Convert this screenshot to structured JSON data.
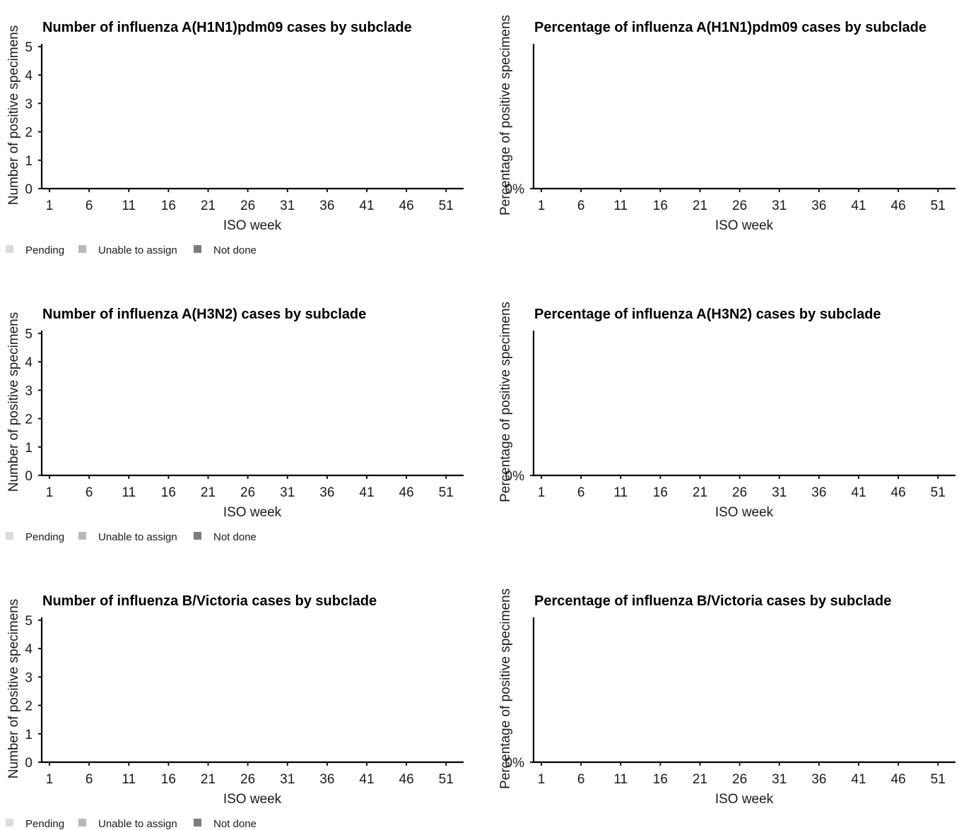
{
  "chart_data": [
    {
      "type": "bar",
      "title": "Number of influenza A(H1N1)pdm09 cases by subclade",
      "xlabel": "ISO week",
      "ylabel": "Number of positive specimens",
      "x_ticks": [
        "1",
        "6",
        "11",
        "16",
        "21",
        "26",
        "31",
        "36",
        "41",
        "46",
        "51"
      ],
      "y_ticks": [
        "0",
        "1",
        "2",
        "3",
        "4",
        "5"
      ],
      "ylim": [
        0,
        5
      ],
      "xlim": [
        1,
        53
      ],
      "series": [],
      "legend": {
        "placement": "bottom-left",
        "items": [
          {
            "label": "Pending",
            "color": "#dcdcdc"
          },
          {
            "label": "Unable to assign",
            "color": "#b8b8b8"
          },
          {
            "label": "Not done",
            "color": "#7c7c7c"
          }
        ]
      }
    },
    {
      "type": "bar",
      "title": "Percentage of influenza A(H1N1)pdm09 cases by subclade",
      "xlabel": "ISO week",
      "ylabel": "Percentage of positive specimens",
      "x_ticks": [
        "1",
        "6",
        "11",
        "16",
        "21",
        "26",
        "31",
        "36",
        "41",
        "46",
        "51"
      ],
      "y_ticks": [
        "0%"
      ],
      "xlim": [
        1,
        53
      ],
      "series": []
    },
    {
      "type": "bar",
      "title": "Number of influenza A(H3N2) cases by subclade",
      "xlabel": "ISO week",
      "ylabel": "Number of positive specimens",
      "x_ticks": [
        "1",
        "6",
        "11",
        "16",
        "21",
        "26",
        "31",
        "36",
        "41",
        "46",
        "51"
      ],
      "y_ticks": [
        "0",
        "1",
        "2",
        "3",
        "4",
        "5"
      ],
      "ylim": [
        0,
        5
      ],
      "xlim": [
        1,
        53
      ],
      "series": [],
      "legend": {
        "placement": "bottom-left",
        "items": [
          {
            "label": "Pending",
            "color": "#dcdcdc"
          },
          {
            "label": "Unable to assign",
            "color": "#b8b8b8"
          },
          {
            "label": "Not done",
            "color": "#7c7c7c"
          }
        ]
      }
    },
    {
      "type": "bar",
      "title": "Percentage of influenza A(H3N2) cases by subclade",
      "xlabel": "ISO week",
      "ylabel": "Percentage of positive specimens",
      "x_ticks": [
        "1",
        "6",
        "11",
        "16",
        "21",
        "26",
        "31",
        "36",
        "41",
        "46",
        "51"
      ],
      "y_ticks": [
        "0%"
      ],
      "xlim": [
        1,
        53
      ],
      "series": []
    },
    {
      "type": "bar",
      "title": "Number of influenza B/Victoria cases by subclade",
      "xlabel": "ISO week",
      "ylabel": "Number of positive specimens",
      "x_ticks": [
        "1",
        "6",
        "11",
        "16",
        "21",
        "26",
        "31",
        "36",
        "41",
        "46",
        "51"
      ],
      "y_ticks": [
        "0",
        "1",
        "2",
        "3",
        "4",
        "5"
      ],
      "ylim": [
        0,
        5
      ],
      "xlim": [
        1,
        53
      ],
      "series": [],
      "legend": {
        "placement": "bottom-left",
        "items": [
          {
            "label": "Pending",
            "color": "#dcdcdc"
          },
          {
            "label": "Unable to assign",
            "color": "#b8b8b8"
          },
          {
            "label": "Not done",
            "color": "#7c7c7c"
          }
        ]
      }
    },
    {
      "type": "bar",
      "title": "Percentage of influenza B/Victoria cases by subclade",
      "xlabel": "ISO week",
      "ylabel": "Percentage of positive specimens",
      "x_ticks": [
        "1",
        "6",
        "11",
        "16",
        "21",
        "26",
        "31",
        "36",
        "41",
        "46",
        "51"
      ],
      "y_ticks": [
        "0%"
      ],
      "xlim": [
        1,
        53
      ],
      "series": []
    }
  ]
}
